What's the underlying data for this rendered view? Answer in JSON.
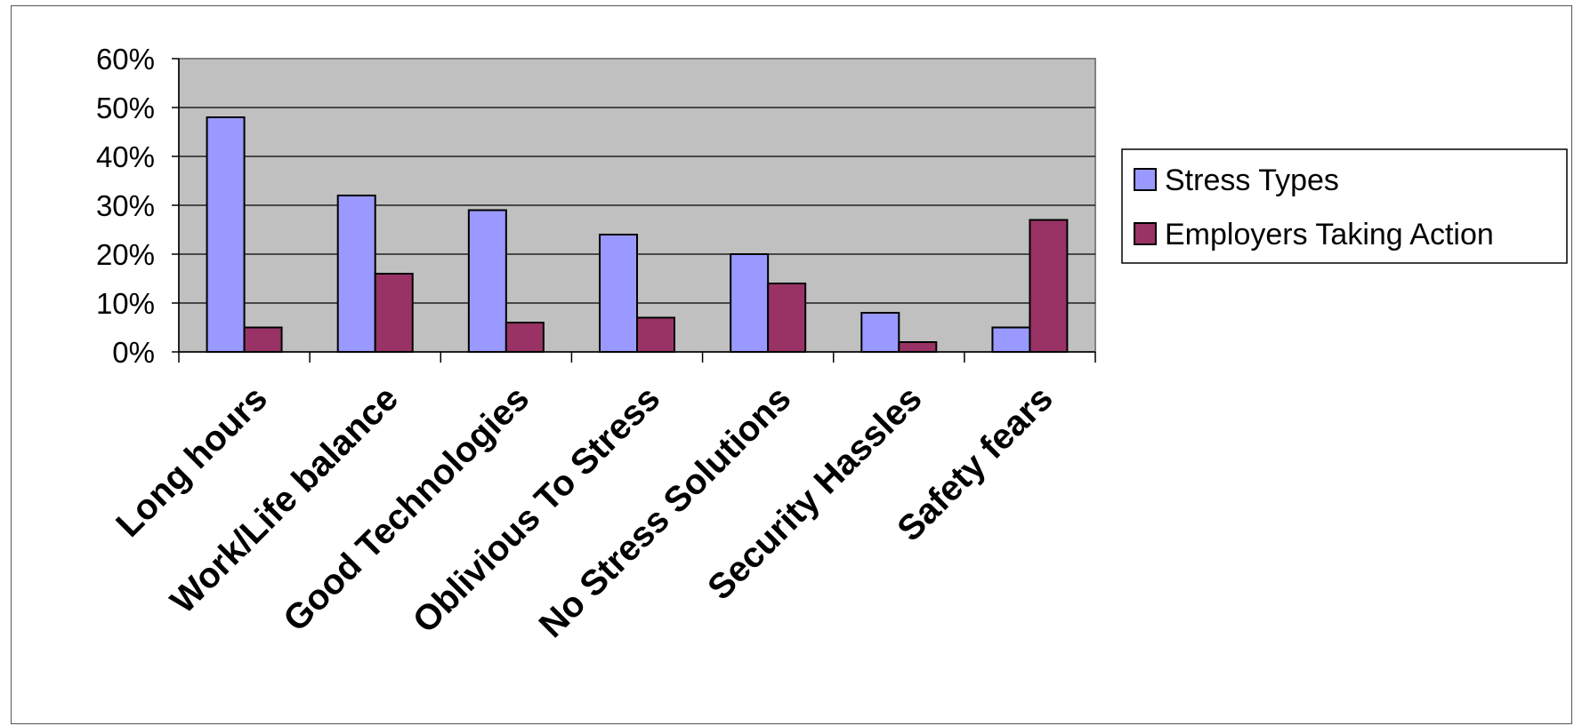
{
  "chart_data": {
    "type": "bar",
    "categories": [
      "Long hours",
      "Work/Life balance",
      "Good Technologies",
      "Oblivious To Stress",
      "No Stress Solutions",
      "Security Hassles",
      "Safety fears"
    ],
    "series": [
      {
        "name": "Stress Types",
        "values": [
          0.48,
          0.32,
          0.29,
          0.24,
          0.2,
          0.08,
          0.05
        ],
        "color": "#9999ff"
      },
      {
        "name": "Employers Taking Action",
        "values": [
          0.05,
          0.16,
          0.06,
          0.07,
          0.14,
          0.02,
          0.27
        ],
        "color": "#993366"
      }
    ],
    "ylim": [
      0,
      0.6
    ],
    "yticks": [
      0,
      0.1,
      0.2,
      0.3,
      0.4,
      0.5,
      0.6
    ],
    "ytick_labels": [
      "0%",
      "10%",
      "20%",
      "30%",
      "40%",
      "50%",
      "60%"
    ],
    "grid": true,
    "plot_background": "#c0c0c0",
    "legend_position": "right"
  }
}
